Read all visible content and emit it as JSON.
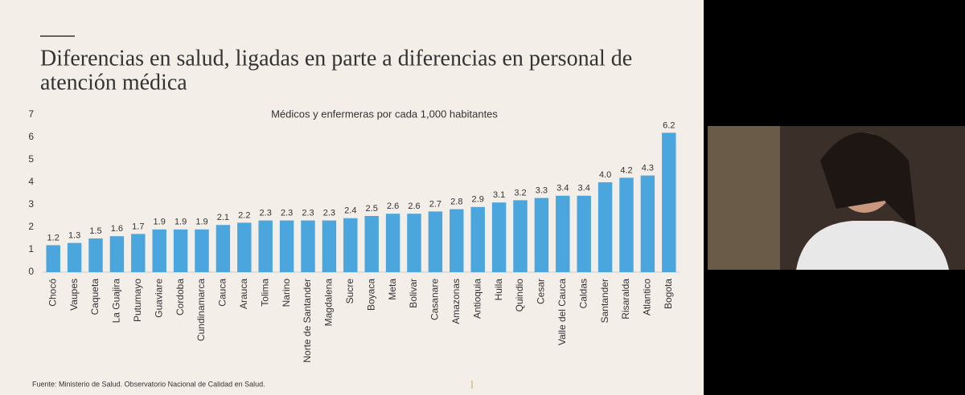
{
  "slide_title": [
    "Diferencias en salud, ligadas en parte a diferencias en personal de",
    "atención médica"
  ],
  "source": "Fuente: Ministerio de Salud. Observatorio Nacional de Calidad en Salud.",
  "chart_data": {
    "type": "bar",
    "title": "Médicos y enfermeras por cada 1,000 habitantes",
    "categories": [
      "Chocó",
      "Vaupes",
      "Caqueta",
      "La Guajira",
      "Putumayo",
      "Guaviare",
      "Cordoba",
      "Cundinamarca",
      "Cauca",
      "Arauca",
      "Tolima",
      "Narino",
      "Norte de Santander",
      "Magdalena",
      "Sucre",
      "Boyaca",
      "Meta",
      "Bolivar",
      "Casanare",
      "Amazonas",
      "Antioquia",
      "Huila",
      "Quindio",
      "Cesar",
      "Valle del Cauca",
      "Caldas",
      "Santander",
      "Risaralda",
      "Atlantico",
      "Bogota"
    ],
    "values": [
      1.2,
      1.3,
      1.5,
      1.6,
      1.7,
      1.9,
      1.9,
      1.9,
      2.1,
      2.2,
      2.3,
      2.3,
      2.3,
      2.3,
      2.4,
      2.5,
      2.6,
      2.6,
      2.7,
      2.8,
      2.9,
      3.1,
      3.2,
      3.3,
      3.4,
      3.4,
      4.0,
      4.2,
      4.3,
      6.2
    ],
    "value_labels": [
      "1.2",
      "1.3",
      "1.5",
      "1.6",
      "1.7",
      "1.9",
      "1.9",
      "1.9",
      "2.1",
      "2.2",
      "2.3",
      "2.3",
      "2.3",
      "2.3",
      "2.4",
      "2.5",
      "2.6",
      "2.6",
      "2.7",
      "2.8",
      "2.9",
      "3.1",
      "3.2",
      "3.3",
      "3.4",
      "3.4",
      "4.0",
      "4.2",
      "4.3",
      "6.2"
    ],
    "color": "#4aa6dc",
    "ylim": [
      0,
      7
    ],
    "yticks": [
      0,
      1,
      2,
      3,
      4,
      5,
      6,
      7
    ],
    "grid": false
  }
}
